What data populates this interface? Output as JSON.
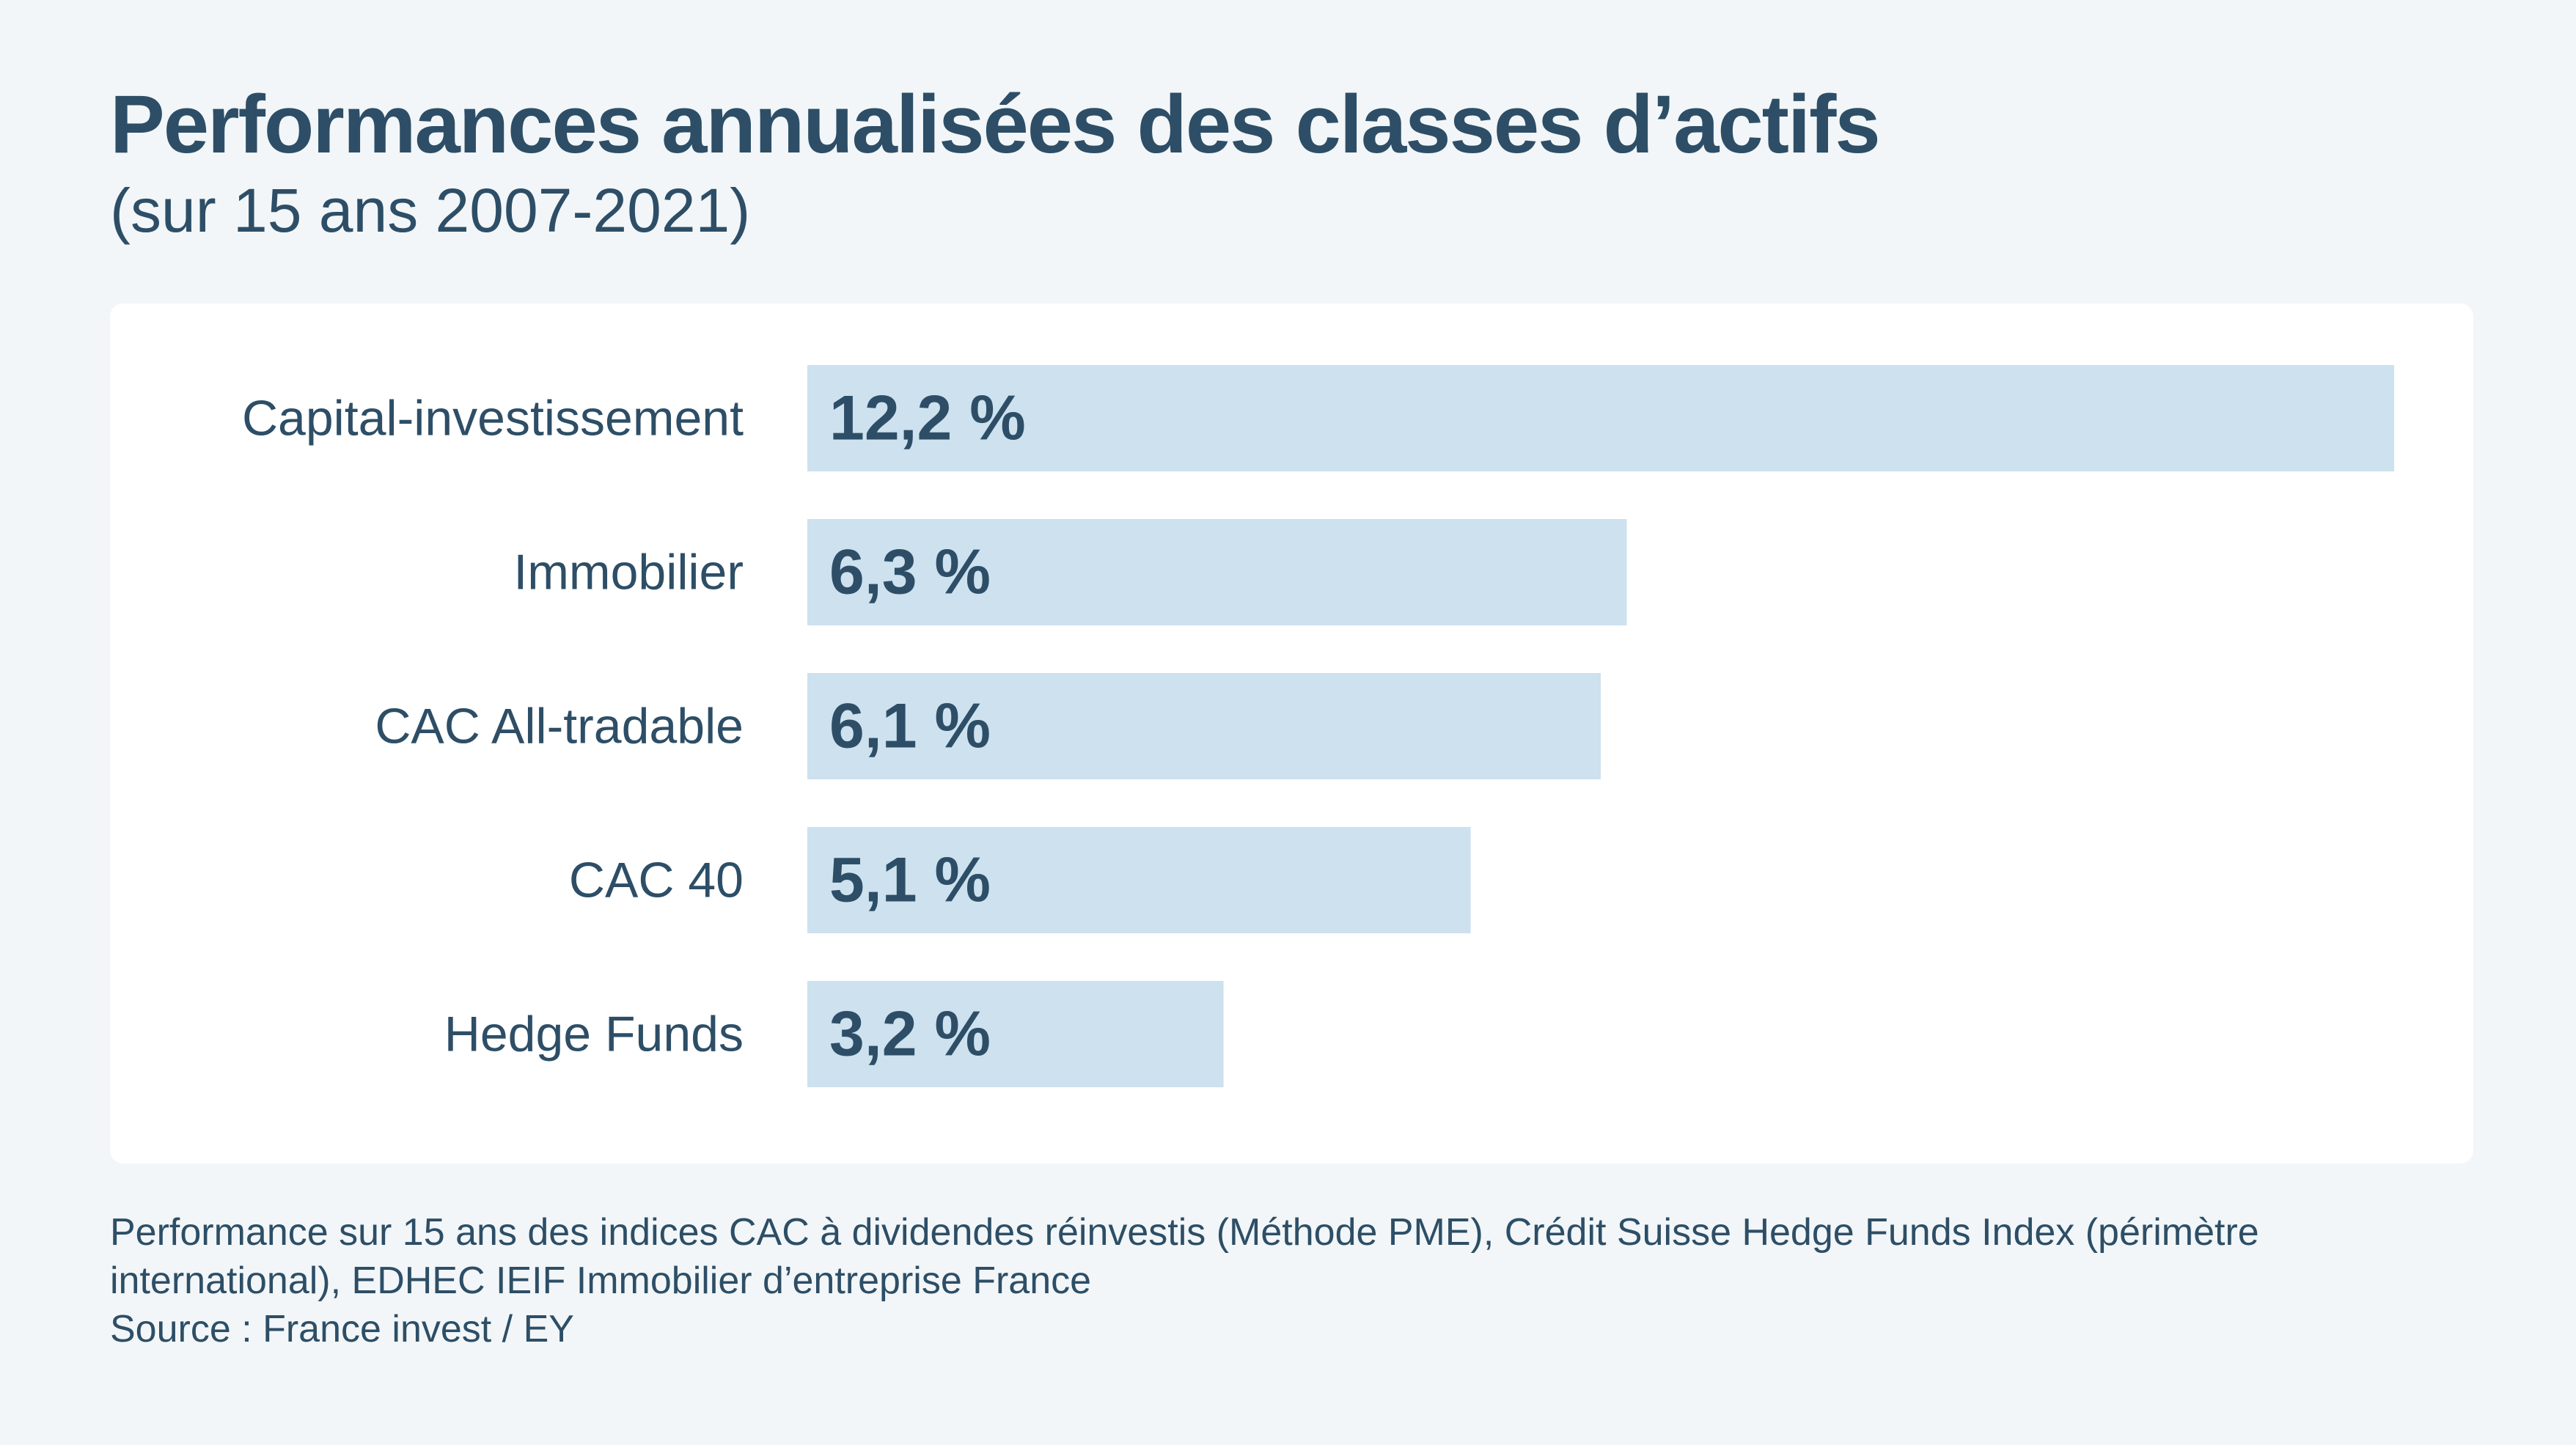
{
  "title": "Performances annualisées des classes d’actifs",
  "subtitle": "(sur 15 ans 2007-2021)",
  "colors": {
    "background": "#f2f6f8",
    "panel": "#ffffff",
    "bar": "#cde1ef",
    "text": "#2d4e66"
  },
  "chart_data": {
    "type": "bar",
    "orientation": "horizontal",
    "categories": [
      "Capital-investissement",
      "Immobilier",
      "CAC All-tradable",
      "CAC 40",
      "Hedge Funds"
    ],
    "values": [
      12.2,
      6.3,
      6.1,
      5.1,
      3.2
    ],
    "value_labels": [
      "12,2 %",
      "6,3 %",
      "6,1 %",
      "5,1 %",
      "3,2 %"
    ],
    "unit": "%",
    "xlim": [
      0,
      12.2
    ],
    "grid": false,
    "legend": "none"
  },
  "footnote": {
    "line1": "Performance sur 15 ans des indices CAC à dividendes réinvestis (Méthode PME), Crédit Suisse Hedge Funds Index (périmètre international), EDHEC IEIF Immobilier d’entreprise France",
    "line2": "Source : France invest / EY"
  }
}
